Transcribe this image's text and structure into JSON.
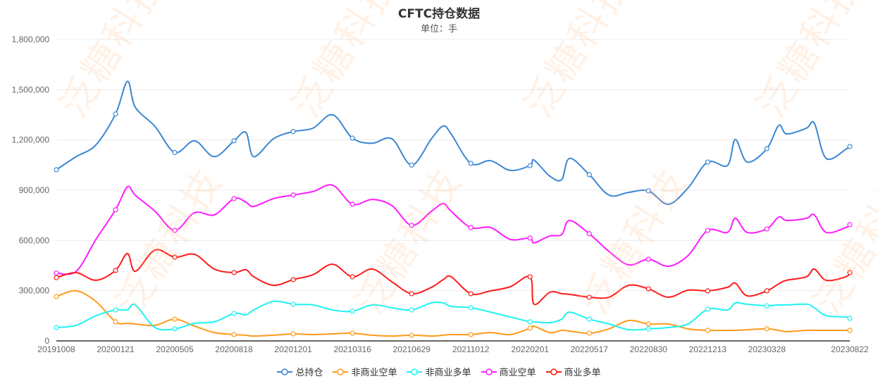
{
  "chart_data": {
    "type": "line",
    "title": "CFTC持仓数据",
    "subtitle": "单位：手",
    "ylim": [
      0,
      1800000
    ],
    "yticks": [
      "0",
      "300,000",
      "600,000",
      "900,000",
      "1,200,000",
      "1,500,000",
      "1,800,000"
    ],
    "xticks": [
      "20191008",
      "20200121",
      "20200505",
      "20200818",
      "20201201",
      "20210316",
      "20210629",
      "20211012",
      "20220201",
      "20220517",
      "20220830",
      "20221213",
      "20230328",
      "20230822"
    ],
    "grid": true,
    "legend_position": "bottom",
    "x": [
      "20191008",
      "20191112",
      "20191217",
      "20200121",
      "20200211",
      "20200225",
      "20200331",
      "20200505",
      "20200609",
      "20200714",
      "20200818",
      "20200908",
      "20200922",
      "20201027",
      "20201201",
      "20210105",
      "20210209",
      "20210316",
      "20210420",
      "20210525",
      "20210629",
      "20210803",
      "20210824",
      "20210907",
      "20211012",
      "20211116",
      "20211221",
      "20220201",
      "20220208",
      "20220308",
      "20220329",
      "20220412",
      "20220517",
      "20220621",
      "20220726",
      "20220830",
      "20221004",
      "20221108",
      "20221213",
      "20230117",
      "20230131",
      "20230221",
      "20230328",
      "20230418",
      "20230502",
      "20230606",
      "20230620",
      "20230711",
      "20230815",
      "20230822"
    ],
    "series": [
      {
        "name": "总持仓",
        "color": "#3b87d3",
        "values": [
          1022000,
          1100000,
          1170000,
          1355000,
          1550000,
          1395000,
          1280000,
          1125000,
          1195000,
          1100000,
          1195000,
          1245000,
          1100000,
          1207000,
          1250000,
          1270000,
          1350000,
          1211000,
          1180000,
          1207000,
          1050000,
          1207000,
          1283000,
          1236000,
          1060000,
          1076000,
          1018000,
          1047000,
          1080000,
          984000,
          963000,
          1090000,
          993000,
          870000,
          887000,
          896000,
          816000,
          913000,
          1068000,
          1047000,
          1203000,
          1068000,
          1148000,
          1287000,
          1236000,
          1270000,
          1300000,
          1090000,
          1144000,
          1161000
        ]
      },
      {
        "name": "非商业空单",
        "color": "#ff9a1a",
        "values": [
          265000,
          299000,
          236000,
          114000,
          105000,
          101000,
          93000,
          130000,
          88000,
          50000,
          38000,
          34000,
          29000,
          34000,
          42000,
          38000,
          42000,
          46000,
          34000,
          29000,
          34000,
          29000,
          34000,
          38000,
          38000,
          50000,
          38000,
          76000,
          88000,
          50000,
          63000,
          59000,
          46000,
          72000,
          122000,
          101000,
          101000,
          72000,
          63000,
          63000,
          63000,
          67000,
          72000,
          63000,
          55000,
          63000,
          63000,
          63000,
          63000,
          63000
        ]
      },
      {
        "name": "非商业多单",
        "color": "#1ff2f2",
        "values": [
          80000,
          93000,
          150000,
          185000,
          185000,
          215000,
          80000,
          72000,
          105000,
          114000,
          164000,
          156000,
          185000,
          236000,
          219000,
          215000,
          185000,
          177000,
          215000,
          198000,
          185000,
          227000,
          227000,
          206000,
          198000,
          172000,
          143000,
          114000,
          114000,
          109000,
          130000,
          172000,
          130000,
          101000,
          67000,
          72000,
          80000,
          101000,
          189000,
          185000,
          227000,
          219000,
          210000,
          215000,
          215000,
          219000,
          198000,
          151000,
          143000,
          135000
        ]
      },
      {
        "name": "商业空单",
        "color": "#ff1aff",
        "values": [
          405000,
          415000,
          605000,
          783000,
          920000,
          870000,
          774000,
          660000,
          766000,
          753000,
          850000,
          829000,
          803000,
          850000,
          871000,
          892000,
          930000,
          816000,
          845000,
          808000,
          690000,
          774000,
          820000,
          774000,
          677000,
          677000,
          606000,
          614000,
          585000,
          627000,
          635000,
          719000,
          640000,
          534000,
          454000,
          488000,
          446000,
          509000,
          660000,
          648000,
          732000,
          648000,
          669000,
          740000,
          719000,
          732000,
          753000,
          648000,
          677000,
          694000
        ]
      },
      {
        "name": "商业多单",
        "color": "#ff1a1a",
        "values": [
          378000,
          408000,
          362000,
          421000,
          522000,
          416000,
          543000,
          500000,
          517000,
          429000,
          408000,
          425000,
          383000,
          332000,
          366000,
          395000,
          458000,
          383000,
          429000,
          353000,
          282000,
          320000,
          366000,
          383000,
          282000,
          299000,
          324000,
          383000,
          219000,
          290000,
          282000,
          278000,
          261000,
          261000,
          332000,
          311000,
          261000,
          303000,
          299000,
          320000,
          345000,
          269000,
          299000,
          341000,
          362000,
          383000,
          429000,
          362000,
          383000,
          408000
        ]
      }
    ]
  },
  "watermark": "泛糖科技"
}
